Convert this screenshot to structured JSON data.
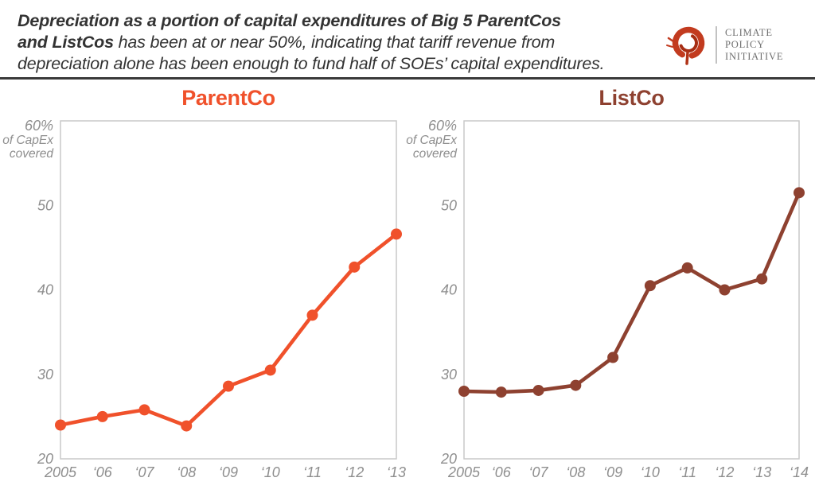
{
  "header": {
    "line1_bold": "Depreciation as a portion of capital expenditures of Big 5 ParentCos",
    "line2_bold": "and ListCos",
    "line2_rest": " has been at or near 50%, indicating that tariff revenue from",
    "line3": "depreciation alone has been enough to fund half of SOEs’ capital expenditures."
  },
  "logo": {
    "brand_color": "#c23b1f",
    "lines": [
      "CLIMATE",
      "POLICY",
      "INITIATIVE"
    ]
  },
  "chart_data": [
    {
      "type": "line",
      "title": "ParentCo",
      "color": "#F0512B",
      "categories": [
        "2005",
        "‘06",
        "‘07",
        "‘08",
        "‘09",
        "‘10",
        "‘11",
        "‘12",
        "‘13"
      ],
      "values": [
        24.0,
        25.0,
        25.8,
        23.9,
        28.6,
        30.5,
        37.0,
        42.7,
        46.6
      ],
      "ylabel_lines": [
        "60%",
        "of CapEx",
        "covered"
      ],
      "yticks": [
        50,
        40,
        30,
        20
      ],
      "ylim": [
        20,
        60
      ],
      "grid": false,
      "legend": "none"
    },
    {
      "type": "line",
      "title": "ListCo",
      "color": "#8E4130",
      "categories": [
        "2005",
        "‘06",
        "‘07",
        "‘08",
        "‘09",
        "‘10",
        "‘11",
        "‘12",
        "‘13",
        "‘14"
      ],
      "values": [
        28.0,
        27.9,
        28.1,
        28.7,
        32.0,
        40.5,
        42.6,
        40.0,
        41.3,
        51.5
      ],
      "ylabel_lines": [
        "60%",
        "of CapEx",
        "covered"
      ],
      "yticks": [
        50,
        40,
        30,
        20
      ],
      "ylim": [
        20,
        60
      ],
      "grid": false,
      "legend": "none"
    }
  ]
}
